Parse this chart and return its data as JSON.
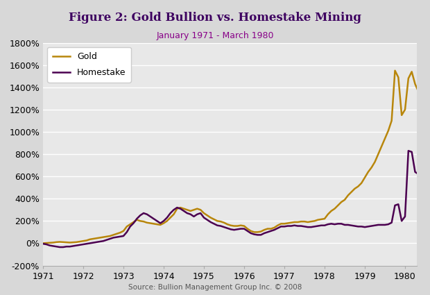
{
  "title": "Figure 2: Gold Bullion vs. Homestake Mining",
  "subtitle": "January 1971 - March 1980",
  "source": "Source: Bullion Management Group Inc. © 2008",
  "background_color": "#E8E8E8",
  "gold_color": "#B8860B",
  "homestake_color": "#4B0050",
  "ylim": [
    -200,
    1800
  ],
  "yticks": [
    -200,
    0,
    200,
    400,
    600,
    800,
    1000,
    1200,
    1400,
    1600,
    1800
  ],
  "gold_y": [
    0,
    2,
    4,
    6,
    10,
    12,
    10,
    8,
    6,
    8,
    10,
    15,
    20,
    25,
    35,
    40,
    45,
    50,
    55,
    60,
    65,
    75,
    85,
    95,
    110,
    150,
    170,
    190,
    210,
    200,
    195,
    185,
    180,
    175,
    170,
    165,
    180,
    200,
    230,
    260,
    310,
    320,
    310,
    300,
    290,
    300,
    310,
    300,
    270,
    250,
    230,
    215,
    200,
    195,
    185,
    170,
    160,
    155,
    155,
    160,
    155,
    130,
    110,
    100,
    100,
    105,
    120,
    130,
    130,
    140,
    160,
    175,
    175,
    180,
    185,
    190,
    190,
    195,
    195,
    190,
    195,
    200,
    210,
    215,
    220,
    260,
    290,
    310,
    340,
    370,
    390,
    430,
    460,
    490,
    510,
    540,
    590,
    640,
    680,
    730,
    800,
    870,
    940,
    1010,
    1100,
    1550,
    1490,
    1150,
    1200,
    1480,
    1540,
    1430,
    1360
  ],
  "homestake_y": [
    -5,
    -10,
    -20,
    -25,
    -30,
    -35,
    -35,
    -30,
    -30,
    -25,
    -20,
    -15,
    -10,
    -5,
    0,
    5,
    10,
    15,
    20,
    30,
    40,
    50,
    55,
    60,
    65,
    100,
    150,
    180,
    220,
    250,
    270,
    260,
    240,
    220,
    200,
    180,
    200,
    230,
    270,
    300,
    320,
    310,
    290,
    270,
    260,
    240,
    260,
    270,
    230,
    210,
    190,
    175,
    160,
    155,
    145,
    135,
    125,
    120,
    125,
    130,
    130,
    110,
    90,
    80,
    75,
    75,
    90,
    100,
    110,
    120,
    135,
    150,
    150,
    155,
    155,
    160,
    155,
    155,
    150,
    145,
    145,
    150,
    155,
    160,
    160,
    170,
    175,
    170,
    175,
    175,
    165,
    165,
    160,
    155,
    150,
    150,
    145,
    150,
    155,
    160,
    165,
    165,
    165,
    170,
    185,
    340,
    350,
    200,
    240,
    830,
    820,
    640,
    620
  ]
}
